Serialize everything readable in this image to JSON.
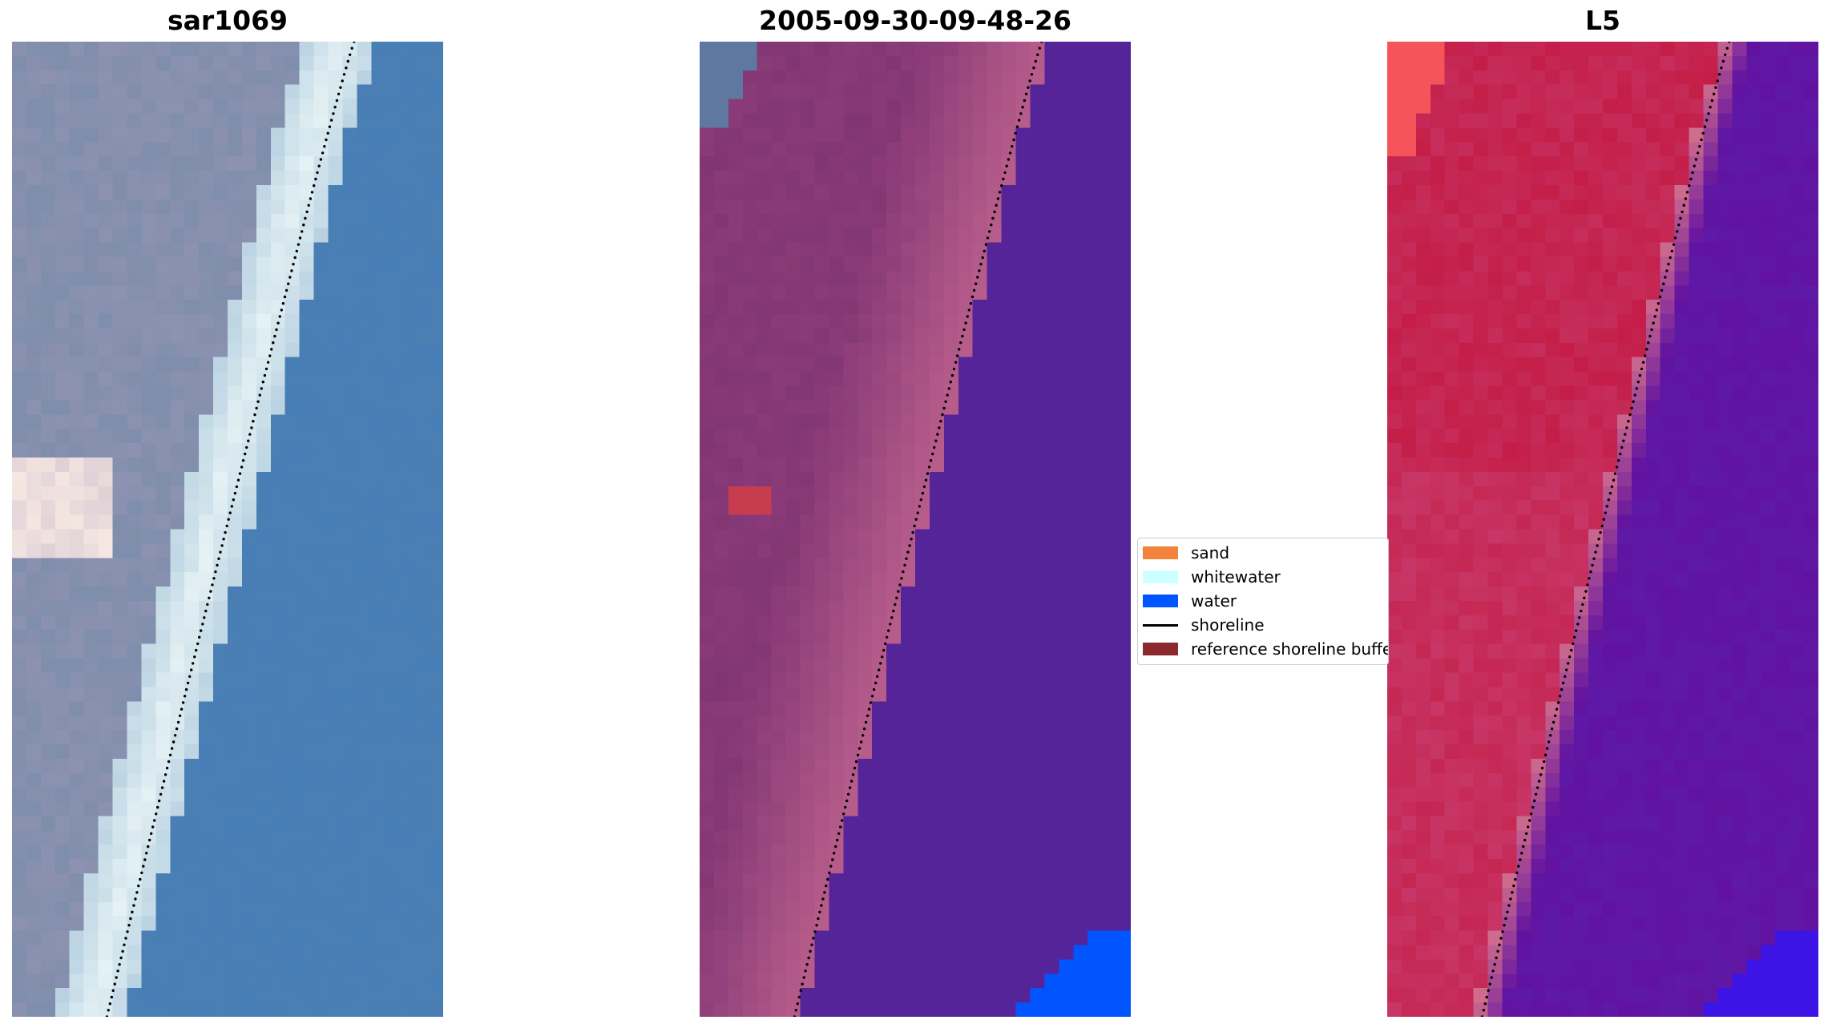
{
  "panels": [
    {
      "title": "sar1069",
      "style": "rgb"
    },
    {
      "title": "2005-09-30-09-48-26",
      "style": "classified"
    },
    {
      "title": "L5",
      "style": "index"
    }
  ],
  "legend": {
    "items": [
      {
        "label": "sand",
        "kind": "patch",
        "color": "#f2823c"
      },
      {
        "label": "whitewater",
        "kind": "patch",
        "color": "#ccffff"
      },
      {
        "label": "water",
        "kind": "patch",
        "color": "#0055ff"
      },
      {
        "label": "shoreline",
        "kind": "line",
        "color": "#000000"
      },
      {
        "label": "reference shoreline buffer",
        "kind": "patch",
        "color": "#8b2a2e"
      }
    ]
  },
  "colors": {
    "sea_blue": "#4a7fb3",
    "whitewater": "#e8f4f6",
    "land_grey": "#8c92b0",
    "land_pink": "#8a3a78",
    "beach_pink": "#c0648f",
    "water_purple": "#552499",
    "water_blue": "#0055ff",
    "land_red": "#c41e48",
    "index_purple": "#6212a0"
  }
}
